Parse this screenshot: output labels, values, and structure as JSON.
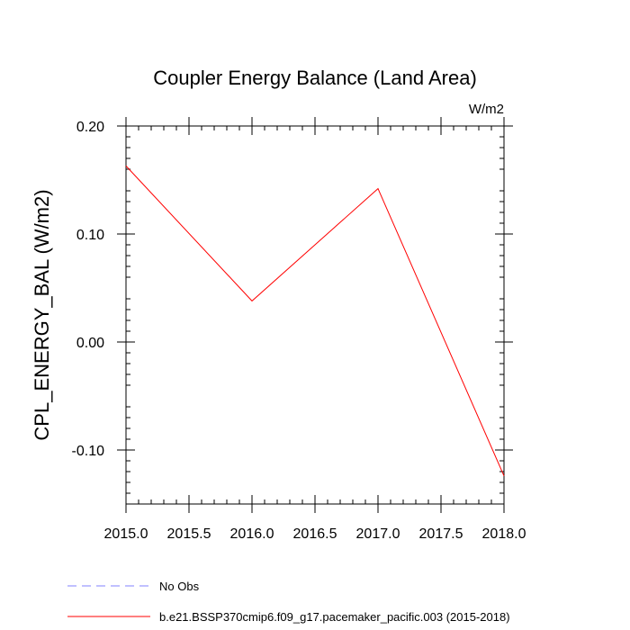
{
  "chart_data": {
    "type": "line",
    "title": "Coupler Energy Balance (Land Area)",
    "units_label": "W/m2",
    "xlabel": "",
    "ylabel": "CPL_ENERGY_BAL  (W/m2)",
    "xlim": [
      2015.0,
      2018.0
    ],
    "ylim": [
      -0.15,
      0.2
    ],
    "x_ticks": [
      2015.0,
      2015.5,
      2016.0,
      2016.5,
      2017.0,
      2017.5,
      2018.0
    ],
    "x_tick_labels": [
      "2015.0",
      "2015.5",
      "2016.0",
      "2016.5",
      "2017.0",
      "2017.5",
      "2018.0"
    ],
    "y_ticks": [
      -0.1,
      0.0,
      0.1,
      0.2
    ],
    "y_tick_labels": [
      "-0.10",
      "0.00",
      "0.10",
      "0.20"
    ],
    "series": [
      {
        "name": "b.e21.BSSP370cmip6.f09_g17.pacemaker_pacific.003 (2015-2018)",
        "color": "#ff0000",
        "style": "solid",
        "x": [
          2015.0,
          2016.0,
          2017.0,
          2018.0
        ],
        "values": [
          0.163,
          0.038,
          0.142,
          -0.124
        ]
      }
    ],
    "legend": [
      {
        "label": "No Obs",
        "color": "#8080ff",
        "style": "dashed"
      },
      {
        "label": "b.e21.BSSP370cmip6.f09_g17.pacemaker_pacific.003 (2015-2018)",
        "color": "#ff0000",
        "style": "solid"
      }
    ],
    "legend_position": "bottom-left"
  }
}
